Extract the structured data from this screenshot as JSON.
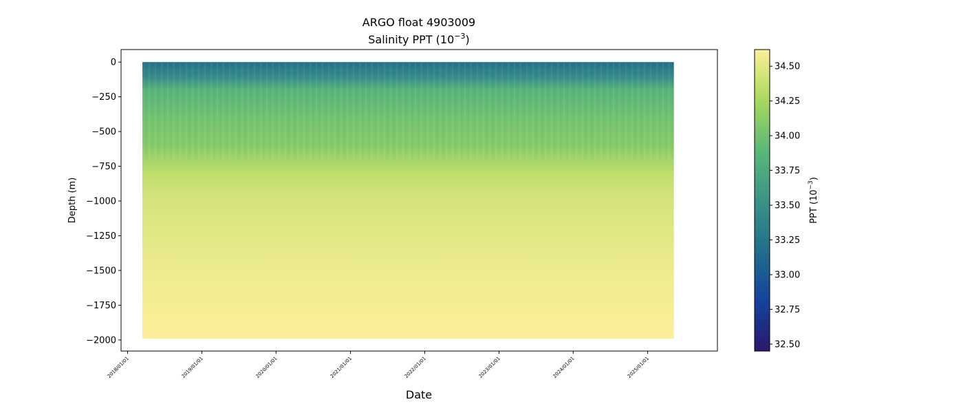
{
  "chart_data": {
    "type": "heatmap",
    "title": "ARGO float 4903009",
    "subtitle_prefix": "Salinity PPT (10",
    "subtitle_exp": "−3",
    "subtitle_suffix": ")",
    "xlabel": "Date",
    "ylabel": "Depth (m)",
    "colorbar_label_prefix": "PPT (10",
    "colorbar_label_exp": "−3",
    "colorbar_label_suffix": ")",
    "x_start_date": "2017-11-30",
    "x_end_date": "2025-12-10",
    "data_start_date": "2018-03-15",
    "data_end_date": "2025-05-10",
    "xticks": [
      "2018/01/01",
      "2019/01/01",
      "2020/01/01",
      "2021/01/01",
      "2022/01/01",
      "2023/01/01",
      "2024/01/01",
      "2025/01/01"
    ],
    "ylim": [
      -2080,
      90
    ],
    "yticks": [
      0,
      -250,
      -500,
      -750,
      -1000,
      -1250,
      -1500,
      -1750,
      -2000
    ],
    "ytick_labels": [
      "0",
      "−250",
      "−500",
      "−750",
      "−1000",
      "−1250",
      "−1500",
      "−1750",
      "−2000"
    ],
    "max_depth": -1990,
    "colorbar_range": [
      32.45,
      34.62
    ],
    "colorbar_ticks": [
      32.5,
      32.75,
      33.0,
      33.25,
      33.5,
      33.75,
      34.0,
      34.25,
      34.5
    ],
    "colorbar_tick_labels": [
      "32.50",
      "32.75",
      "33.00",
      "33.25",
      "33.50",
      "33.75",
      "34.00",
      "34.25",
      "34.50"
    ],
    "colormap": "haline",
    "colormap_stops": [
      "#2a186c",
      "#14439c",
      "#206e8b",
      "#3c9387",
      "#5ab978",
      "#aad85c",
      "#fdef9a"
    ],
    "salinity_profile": [
      {
        "depth": 0,
        "value": 33.2
      },
      {
        "depth": -100,
        "value": 33.45
      },
      {
        "depth": -200,
        "value": 33.85
      },
      {
        "depth": -400,
        "value": 34.0
      },
      {
        "depth": -600,
        "value": 34.1
      },
      {
        "depth": -800,
        "value": 34.35
      },
      {
        "depth": -1000,
        "value": 34.45
      },
      {
        "depth": -1500,
        "value": 34.55
      },
      {
        "depth": -2000,
        "value": 34.62
      }
    ]
  }
}
